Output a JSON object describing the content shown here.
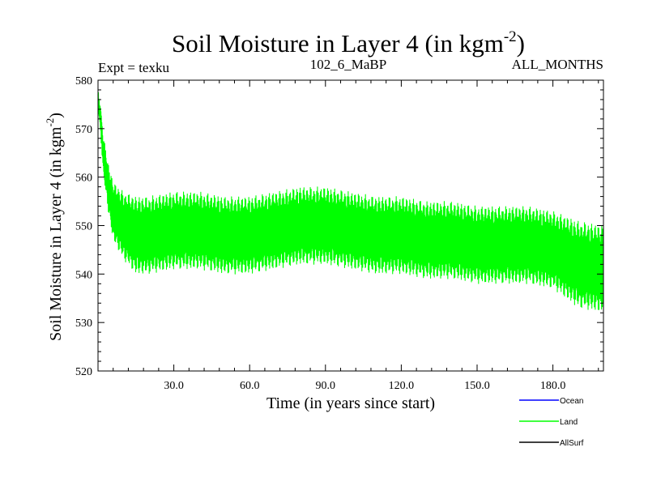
{
  "header": {
    "title_main": "Soil Moisture in Layer 4 (in kgm",
    "title_sup": "-2",
    "title_close": ")",
    "expt": "Expt = texku",
    "center_label": "102_6_MaBP",
    "right_label": "ALL_MONTHS"
  },
  "chart_data": {
    "type": "line",
    "title": "Soil Moisture in Layer 4 (in kgm-2)",
    "xlabel": "Time (in years since start)",
    "ylabel": "Soil Moisture in Layer 4 (in kgm-2)",
    "ylabel_main": "Soil Moisture in Layer 4 (in kgm",
    "ylabel_sup": "-2",
    "ylabel_close": ")",
    "xlim": [
      0,
      200
    ],
    "ylim": [
      520,
      580
    ],
    "x_ticks": [
      {
        "value": 30,
        "label": "30.0"
      },
      {
        "value": 60,
        "label": "60.0"
      },
      {
        "value": 90,
        "label": "90.0"
      },
      {
        "value": 120,
        "label": "120.0"
      },
      {
        "value": 150,
        "label": "150.0"
      },
      {
        "value": 180,
        "label": "180.0"
      }
    ],
    "y_ticks": [
      {
        "value": 520,
        "label": "520"
      },
      {
        "value": 530,
        "label": "530"
      },
      {
        "value": 540,
        "label": "540"
      },
      {
        "value": 550,
        "label": "550"
      },
      {
        "value": 560,
        "label": "560"
      },
      {
        "value": 570,
        "label": "570"
      },
      {
        "value": 580,
        "label": "580"
      }
    ],
    "grid": false,
    "legend_position": "bottom-right",
    "series": [
      {
        "name": "Ocean",
        "color": "#0000ff",
        "values": []
      },
      {
        "name": "Land",
        "color": "#00ff00",
        "x": [
          0,
          1,
          2,
          4,
          6,
          10,
          15,
          20,
          30,
          40,
          50,
          60,
          70,
          80,
          90,
          100,
          110,
          120,
          130,
          140,
          150,
          160,
          170,
          180,
          190,
          200
        ],
        "values": [
          576,
          572,
          565,
          558,
          553,
          550,
          548,
          548,
          549,
          549,
          548,
          548,
          549,
          550,
          550,
          549,
          548,
          548,
          547,
          547,
          546,
          546,
          546,
          545,
          542,
          541
        ],
        "spread": [
          2,
          3,
          4,
          5,
          6,
          7,
          8,
          8,
          8,
          8,
          8,
          8,
          8,
          8,
          8,
          8,
          8,
          8,
          8,
          8,
          8,
          8,
          8,
          8,
          9,
          9
        ]
      },
      {
        "name": "AllSurf",
        "color": "#000000",
        "values": []
      }
    ]
  }
}
